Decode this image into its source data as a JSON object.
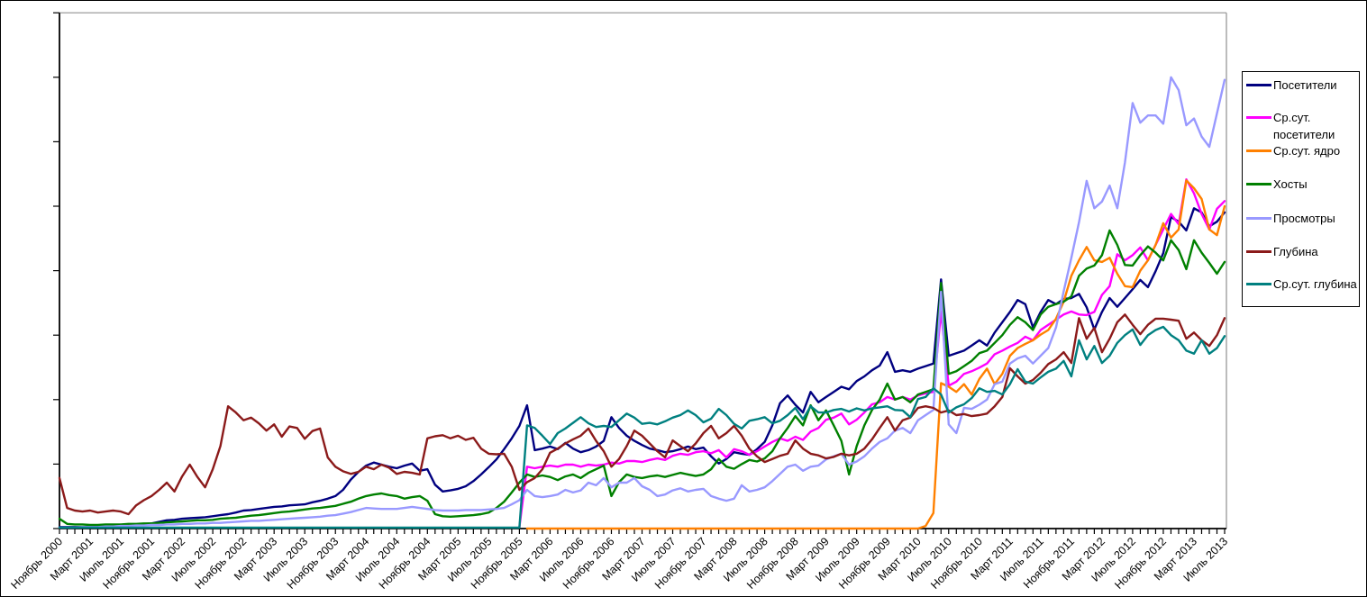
{
  "figure": {
    "background": "#FFFFFF",
    "border_color": "#000000",
    "plot_border_color": "#909090",
    "axis_color": "#000000"
  },
  "chart_data": {
    "type": "line",
    "title": "",
    "xlabel": "",
    "ylabel": "",
    "grid": "off",
    "legend_position": "right",
    "x_axis": {
      "tick_unit": "month",
      "months_total": 153,
      "first_month": "Ноябрь 2000",
      "last_month": "Июль 2013",
      "label_every_n_months": 4,
      "label_rotation_deg": -45,
      "labels": [
        "Ноябрь 2000",
        "Март 2001",
        "Июль 2001",
        "Ноябрь 2001",
        "Март 2002",
        "Июль 2002",
        "Ноябрь 2002",
        "Март 2003",
        "Июль 2003",
        "Ноябрь 2003",
        "Март 2004",
        "Июль 2004",
        "Ноябрь 2004",
        "Март 2005",
        "Июль 2005",
        "Ноябрь 2005",
        "Март 2006",
        "Июль 2006",
        "Ноябрь 2006",
        "Март 2007",
        "Июль 2007",
        "Ноябрь 2007",
        "Март 2008",
        "Июль 2008",
        "Ноябрь 2008",
        "Март 2009",
        "Июль 2009",
        "Ноябрь 2009",
        "Март 2010",
        "Июль 2010",
        "Ноябрь 2010",
        "Март 2011",
        "Июль 2011",
        "Ноябрь 2011",
        "Март 2012",
        "Июль 2012",
        "Ноябрь 2012",
        "Март 2013",
        "Июль 2013"
      ]
    },
    "y_axis": {
      "min": 0,
      "max": 100,
      "tick_count": 9,
      "labels_visible": false,
      "unit": "relative scale (0-100 of plot height, no numeric labels shown)"
    },
    "series": [
      {
        "name": "Посетители",
        "key": "visitors",
        "color": "#000080",
        "start_month_index": 0,
        "values": [
          0.3,
          0.3,
          0.3,
          0.3,
          0.3,
          0.4,
          0.4,
          0.5,
          0.6,
          0.7,
          0.8,
          0.9,
          1.0,
          1.3,
          1.6,
          1.7,
          1.9,
          2.0,
          2.1,
          2.2,
          2.4,
          2.6,
          2.8,
          3.1,
          3.5,
          3.6,
          3.8,
          4.0,
          4.2,
          4.3,
          4.5,
          4.6,
          4.7,
          5.1,
          5.4,
          5.8,
          6.3,
          7.5,
          9.5,
          11.0,
          12.2,
          12.8,
          12.4,
          12.0,
          11.7,
          12.2,
          12.6,
          11.2,
          11.5,
          8.5,
          7.2,
          7.4,
          7.7,
          8.2,
          9.2,
          10.5,
          11.9,
          13.4,
          15.4,
          17.5,
          19.9,
          23.9,
          15.2,
          15.5,
          15.9,
          15.4,
          16.6,
          15.5,
          14.8,
          15.2,
          15.9,
          17.0,
          21.6,
          19.5,
          18.0,
          17.0,
          16.2,
          15.5,
          15.2,
          14.8,
          15.0,
          15.4,
          15.9,
          15.4,
          15.7,
          14.0,
          12.6,
          13.5,
          14.8,
          14.5,
          14.3,
          15.4,
          16.8,
          20.0,
          24.3,
          25.8,
          24.0,
          22.5,
          26.5,
          24.5,
          25.5,
          26.5,
          27.5,
          27.0,
          28.6,
          29.5,
          30.7,
          31.6,
          34.2,
          30.4,
          30.7,
          30.4,
          31.0,
          31.5,
          32.0,
          48.3,
          33.5,
          34.0,
          34.5,
          35.5,
          36.5,
          35.5,
          38.0,
          40.0,
          42.0,
          44.3,
          43.5,
          39.0,
          42.0,
          44.3,
          43.5,
          44.5,
          44.7,
          45.5,
          42.9,
          38.6,
          42.0,
          44.7,
          43.0,
          44.7,
          46.4,
          48.2,
          46.8,
          49.9,
          53.4,
          60.4,
          59.5,
          57.8,
          62.1,
          61.3,
          58.6,
          59.5,
          61.3
        ]
      },
      {
        "name": "Ср.сут. посетители",
        "key": "avg-daily-visitors",
        "color": "#FF00FF",
        "start_month_index": 60,
        "values": [
          0.3,
          12.0,
          11.7,
          12.0,
          12.2,
          12.0,
          12.4,
          12.4,
          12.0,
          12.4,
          12.2,
          12.4,
          12.8,
          12.6,
          13.1,
          13.1,
          12.9,
          13.3,
          13.6,
          13.3,
          14.1,
          14.5,
          14.3,
          14.8,
          15.0,
          14.6,
          15.2,
          13.8,
          15.4,
          15.0,
          14.3,
          15.0,
          15.9,
          16.8,
          17.5,
          17.0,
          17.8,
          17.2,
          18.8,
          19.5,
          21.1,
          21.5,
          22.3,
          20.2,
          21.1,
          22.5,
          24.1,
          24.5,
          25.5,
          25.0,
          25.5,
          25.0,
          25.8,
          26.2,
          26.5,
          42.1,
          27.7,
          28.5,
          30.0,
          30.5,
          31.2,
          32.0,
          33.8,
          34.5,
          35.3,
          36.0,
          37.2,
          36.5,
          38.5,
          39.5,
          40.5,
          41.5,
          42.1,
          41.5,
          41.4,
          42.0,
          45.3,
          47.0,
          53.2,
          52.0,
          53.0,
          54.5,
          52.0,
          55.0,
          58.0,
          61.0,
          59.0,
          67.7,
          65.0,
          61.0,
          58.0,
          62.0,
          63.5
        ]
      },
      {
        "name": "Ср.сут. ядро",
        "key": "avg-daily-core",
        "color": "#FF8000",
        "start_month_index": 61,
        "values": [
          0,
          0,
          0,
          0,
          0,
          0,
          0,
          0,
          0,
          0,
          0,
          0,
          0,
          0,
          0,
          0,
          0,
          0,
          0,
          0,
          0,
          0,
          0,
          0,
          0,
          0,
          0,
          0,
          0,
          0,
          0,
          0,
          0,
          0,
          0,
          0,
          0,
          0,
          0,
          0,
          0,
          0,
          0,
          0,
          0,
          0,
          0,
          0,
          0,
          0,
          0,
          0,
          0.5,
          3.0,
          28.2,
          27.5,
          26.5,
          28.0,
          26.0,
          29.0,
          31.0,
          28.0,
          30.0,
          33.5,
          35.0,
          35.8,
          36.5,
          37.6,
          38.5,
          40.7,
          44.0,
          49.0,
          52.0,
          54.6,
          52.0,
          51.7,
          52.5,
          49.4,
          47.0,
          46.8,
          50.0,
          52.0,
          55.0,
          59.2,
          56.4,
          58.0,
          67.5,
          66.0,
          63.9,
          58.0,
          56.9,
          62.5
        ]
      },
      {
        "name": "Хосты",
        "key": "hosts",
        "color": "#008000",
        "start_month_index": 0,
        "values": [
          1.9,
          0.9,
          0.8,
          0.8,
          0.7,
          0.7,
          0.8,
          0.8,
          0.8,
          0.9,
          0.9,
          1.0,
          1.0,
          1.1,
          1.2,
          1.3,
          1.4,
          1.5,
          1.6,
          1.6,
          1.7,
          1.9,
          2.0,
          2.1,
          2.3,
          2.5,
          2.6,
          2.8,
          3.0,
          3.2,
          3.3,
          3.5,
          3.7,
          3.9,
          4.0,
          4.2,
          4.4,
          4.8,
          5.2,
          5.8,
          6.3,
          6.6,
          6.8,
          6.5,
          6.3,
          5.8,
          6.1,
          6.3,
          5.4,
          2.8,
          2.4,
          2.3,
          2.4,
          2.5,
          2.6,
          2.8,
          3.1,
          4.0,
          5.2,
          7.0,
          8.9,
          10.5,
          10.0,
          10.3,
          10.0,
          9.4,
          10.1,
          10.5,
          9.8,
          10.8,
          11.5,
          12.2,
          6.3,
          9.0,
          10.5,
          10.0,
          9.8,
          10.1,
          10.3,
          10.0,
          10.4,
          10.8,
          10.5,
          10.2,
          10.5,
          11.5,
          13.5,
          12.0,
          11.6,
          12.5,
          13.3,
          13.0,
          13.6,
          15.0,
          17.5,
          19.5,
          21.8,
          20.0,
          23.9,
          21.0,
          22.9,
          20.0,
          17.0,
          10.5,
          16.0,
          20.0,
          23.0,
          25.0,
          28.1,
          25.0,
          25.5,
          24.5,
          26.0,
          26.5,
          27.0,
          47.6,
          30.0,
          30.5,
          31.5,
          32.5,
          34.0,
          34.5,
          36.0,
          37.5,
          39.5,
          41.0,
          40.0,
          38.5,
          41.5,
          43.0,
          43.5,
          44.0,
          45.0,
          49.0,
          50.4,
          51.0,
          53.0,
          57.8,
          55.0,
          51.1,
          51.0,
          53.0,
          54.7,
          53.5,
          52.0,
          55.9,
          54.0,
          50.3,
          55.9,
          53.5,
          51.5,
          49.4,
          51.7
        ]
      },
      {
        "name": "Просмотры",
        "key": "views",
        "color": "#9999FF",
        "start_month_index": 0,
        "values": [
          0.2,
          0.2,
          0.2,
          0.3,
          0.3,
          0.3,
          0.4,
          0.4,
          0.5,
          0.5,
          0.6,
          0.6,
          0.7,
          0.7,
          0.8,
          0.8,
          0.9,
          0.9,
          1.0,
          1.0,
          1.1,
          1.1,
          1.2,
          1.3,
          1.4,
          1.5,
          1.5,
          1.6,
          1.7,
          1.8,
          1.9,
          2.0,
          2.1,
          2.2,
          2.3,
          2.5,
          2.6,
          2.9,
          3.2,
          3.6,
          4.0,
          3.9,
          3.8,
          3.8,
          3.8,
          4.0,
          4.2,
          4.0,
          3.8,
          3.6,
          3.5,
          3.5,
          3.5,
          3.6,
          3.6,
          3.6,
          3.7,
          3.8,
          4.0,
          4.7,
          5.5,
          7.5,
          6.3,
          6.1,
          6.3,
          6.6,
          7.5,
          7.0,
          7.4,
          8.9,
          8.4,
          9.8,
          8.0,
          8.9,
          8.9,
          9.8,
          8.2,
          7.5,
          6.3,
          6.6,
          7.4,
          7.8,
          7.2,
          7.5,
          7.7,
          6.3,
          5.8,
          5.4,
          5.8,
          8.4,
          7.2,
          7.5,
          8.0,
          9.2,
          10.6,
          12.0,
          12.4,
          11.2,
          12.0,
          12.2,
          13.4,
          14.0,
          14.5,
          12.4,
          13.0,
          14.0,
          15.5,
          16.8,
          17.5,
          19.0,
          19.5,
          18.5,
          21.0,
          22.0,
          23.0,
          45.9,
          20.2,
          18.5,
          23.4,
          23.2,
          24.0,
          25.0,
          28.0,
          28.5,
          32.0,
          33.0,
          33.5,
          32.0,
          33.5,
          35.0,
          39.0,
          46.0,
          52.5,
          59.4,
          67.4,
          62.1,
          63.4,
          66.5,
          62.1,
          71.0,
          82.5,
          78.7,
          80.1,
          80.1,
          78.5,
          87.5,
          85.0,
          78.2,
          79.5,
          76.0,
          74.0,
          80.5,
          87.0
        ]
      },
      {
        "name": "Глубина",
        "key": "depth",
        "color": "#8B1A1A",
        "start_month_index": 0,
        "values": [
          9.8,
          4.0,
          3.5,
          3.3,
          3.5,
          3.1,
          3.3,
          3.5,
          3.3,
          2.8,
          4.5,
          5.5,
          6.3,
          7.5,
          8.9,
          7.2,
          10.1,
          12.4,
          10.0,
          8.0,
          11.5,
          16.0,
          23.7,
          22.5,
          21.0,
          21.5,
          20.4,
          19.0,
          20.2,
          17.8,
          19.8,
          19.5,
          17.4,
          18.9,
          19.4,
          13.8,
          12.0,
          11.1,
          10.6,
          11.0,
          12.0,
          11.5,
          12.4,
          11.8,
          10.6,
          11.0,
          10.8,
          10.5,
          17.5,
          17.9,
          18.1,
          17.5,
          18.0,
          17.2,
          17.6,
          15.5,
          14.5,
          14.4,
          14.5,
          12.0,
          7.5,
          9.0,
          9.8,
          11.5,
          14.7,
          15.5,
          16.5,
          17.3,
          18.0,
          19.4,
          17.0,
          15.0,
          12.0,
          13.5,
          16.0,
          19.0,
          18.0,
          16.5,
          15.0,
          13.8,
          17.1,
          16.0,
          15.0,
          16.5,
          18.5,
          19.9,
          17.5,
          18.5,
          19.9,
          18.0,
          15.5,
          14.0,
          12.9,
          13.5,
          14.1,
          14.5,
          17.1,
          15.5,
          14.5,
          14.2,
          13.6,
          13.9,
          14.5,
          14.2,
          14.5,
          15.5,
          17.3,
          19.5,
          21.6,
          19.0,
          21.0,
          21.5,
          23.4,
          23.7,
          23.4,
          22.5,
          22.9,
          22.0,
          22.2,
          21.8,
          22.0,
          22.3,
          23.7,
          25.5,
          31.1,
          29.5,
          28.1,
          28.8,
          30.2,
          31.9,
          32.8,
          34.2,
          32.1,
          40.8,
          36.8,
          38.9,
          34.2,
          36.8,
          40.0,
          41.5,
          39.5,
          37.7,
          39.5,
          40.7,
          40.7,
          40.5,
          40.3,
          36.8,
          38.0,
          36.5,
          35.4,
          37.5,
          40.8
        ]
      },
      {
        "name": "Ср.сут. глубина",
        "key": "avg-daily-depth",
        "color": "#008080",
        "start_month_index": 0,
        "values": [
          0.2,
          0.2,
          0.2,
          0.2,
          0.2,
          0.2,
          0.2,
          0.2,
          0.2,
          0.2,
          0.2,
          0.2,
          0.2,
          0.2,
          0.2,
          0.2,
          0.2,
          0.2,
          0.2,
          0.2,
          0.2,
          0.2,
          0.2,
          0.2,
          0.2,
          0.2,
          0.2,
          0.2,
          0.2,
          0.2,
          0.2,
          0.2,
          0.2,
          0.2,
          0.2,
          0.2,
          0.2,
          0.2,
          0.2,
          0.2,
          0.2,
          0.2,
          0.2,
          0.2,
          0.2,
          0.2,
          0.2,
          0.2,
          0.2,
          0.2,
          0.2,
          0.2,
          0.2,
          0.2,
          0.2,
          0.2,
          0.2,
          0.2,
          0.2,
          0.2,
          0.2,
          20.0,
          19.5,
          18.0,
          16.4,
          18.5,
          19.4,
          20.5,
          21.6,
          20.4,
          19.7,
          19.9,
          19.7,
          21.0,
          22.3,
          21.5,
          20.3,
          20.5,
          20.2,
          20.8,
          21.5,
          22.0,
          22.9,
          22.0,
          20.6,
          21.3,
          23.2,
          22.0,
          20.3,
          19.4,
          20.9,
          21.2,
          21.6,
          20.4,
          20.9,
          22.0,
          23.4,
          21.2,
          23.7,
          22.5,
          22.5,
          23.0,
          23.2,
          22.7,
          23.3,
          22.9,
          23.3,
          23.5,
          23.7,
          23.0,
          22.9,
          21.6,
          25.1,
          25.5,
          27.2,
          26.0,
          22.5,
          23.5,
          24.1,
          25.3,
          27.2,
          26.5,
          26.7,
          26.0,
          28.0,
          30.9,
          28.5,
          28.1,
          29.3,
          30.4,
          31.0,
          32.5,
          29.5,
          36.5,
          32.8,
          35.4,
          32.1,
          33.5,
          36.0,
          37.5,
          38.6,
          35.6,
          37.5,
          38.5,
          39.1,
          37.5,
          36.5,
          34.5,
          33.9,
          36.5,
          33.9,
          35.0,
          37.3
        ]
      }
    ]
  }
}
